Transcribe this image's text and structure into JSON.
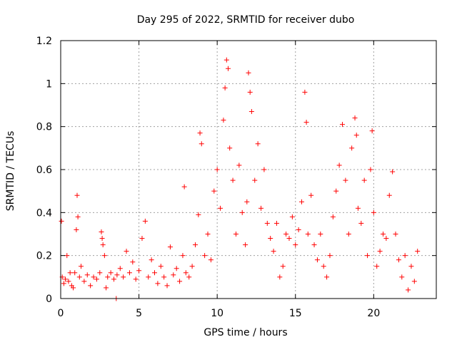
{
  "chart_data": {
    "type": "scatter",
    "title": "Day 295 of 2022, SRMTID for receiver dubo",
    "xlabel": "GPS time / hours",
    "ylabel": "SRMTID / TECUs",
    "xlim": [
      0,
      24
    ],
    "ylim": [
      0,
      1.2
    ],
    "xticks": [
      0,
      5,
      10,
      15,
      20
    ],
    "xtick_labels": [
      "0",
      "5",
      "10",
      "15",
      "20"
    ],
    "yticks": [
      0,
      0.2,
      0.4,
      0.6,
      0.8,
      1,
      1.2
    ],
    "ytick_labels": [
      "0",
      "0.2",
      "0.4",
      "0.6",
      "0.8",
      "1",
      "1.2"
    ],
    "grid": true,
    "marker": "+",
    "color": "#ff0000",
    "x_range_covered": [
      0,
      22.8
    ],
    "series": [
      {
        "name": "SRMTID",
        "x": [
          0.05,
          0.1,
          0.2,
          0.3,
          0.4,
          0.5,
          0.6,
          0.7,
          0.8,
          0.9,
          1.0,
          1.05,
          1.1,
          1.2,
          1.3,
          1.5,
          1.7,
          1.9,
          2.1,
          2.3,
          2.5,
          2.6,
          2.65,
          2.7,
          2.8,
          2.9,
          3.0,
          3.2,
          3.4,
          3.55,
          3.6,
          3.8,
          4.0,
          4.2,
          4.4,
          4.6,
          4.8,
          5.0,
          5.2,
          5.4,
          5.6,
          5.8,
          6.0,
          6.2,
          6.4,
          6.6,
          6.8,
          7.0,
          7.2,
          7.4,
          7.6,
          7.8,
          7.9,
          8.0,
          8.2,
          8.4,
          8.6,
          8.8,
          8.9,
          9.0,
          9.2,
          9.4,
          9.6,
          9.8,
          10.0,
          10.2,
          10.4,
          10.5,
          10.6,
          10.7,
          10.8,
          11.0,
          11.2,
          11.4,
          11.6,
          11.8,
          11.9,
          12.0,
          12.1,
          12.2,
          12.4,
          12.6,
          12.8,
          13.0,
          13.2,
          13.4,
          13.6,
          13.8,
          14.0,
          14.2,
          14.4,
          14.6,
          14.8,
          15.0,
          15.2,
          15.4,
          15.6,
          15.7,
          15.8,
          16.0,
          16.2,
          16.4,
          16.6,
          16.8,
          17.0,
          17.2,
          17.4,
          17.6,
          17.8,
          18.0,
          18.2,
          18.4,
          18.6,
          18.8,
          18.9,
          19.0,
          19.2,
          19.4,
          19.6,
          19.8,
          19.9,
          20.0,
          20.2,
          20.4,
          20.6,
          20.8,
          21.0,
          21.2,
          21.4,
          21.6,
          21.8,
          22.0,
          22.2,
          22.4,
          22.6,
          22.8
        ],
        "y": [
          0.36,
          0.1,
          0.07,
          0.09,
          0.2,
          0.08,
          0.12,
          0.06,
          0.05,
          0.12,
          0.32,
          0.48,
          0.38,
          0.1,
          0.15,
          0.08,
          0.11,
          0.06,
          0.1,
          0.09,
          0.12,
          0.31,
          0.28,
          0.25,
          0.2,
          0.05,
          0.1,
          0.12,
          0.09,
          0.0,
          0.11,
          0.14,
          0.1,
          0.22,
          0.12,
          0.17,
          0.09,
          0.13,
          0.28,
          0.36,
          0.1,
          0.18,
          0.12,
          0.07,
          0.15,
          0.1,
          0.06,
          0.24,
          0.11,
          0.14,
          0.08,
          0.2,
          0.52,
          0.12,
          0.1,
          0.15,
          0.25,
          0.39,
          0.77,
          0.72,
          0.2,
          0.3,
          0.18,
          0.5,
          0.6,
          0.42,
          0.83,
          0.98,
          1.11,
          1.07,
          0.7,
          0.55,
          0.3,
          0.62,
          0.4,
          0.25,
          0.45,
          1.05,
          0.96,
          0.87,
          0.55,
          0.72,
          0.42,
          0.6,
          0.35,
          0.28,
          0.22,
          0.35,
          0.1,
          0.15,
          0.3,
          0.28,
          0.38,
          0.25,
          0.32,
          0.45,
          0.96,
          0.82,
          0.3,
          0.48,
          0.25,
          0.18,
          0.3,
          0.15,
          0.1,
          0.2,
          0.38,
          0.5,
          0.62,
          0.81,
          0.55,
          0.3,
          0.7,
          0.84,
          0.76,
          0.42,
          0.35,
          0.55,
          0.2,
          0.6,
          0.78,
          0.4,
          0.15,
          0.22,
          0.3,
          0.28,
          0.48,
          0.59,
          0.3,
          0.18,
          0.1,
          0.2,
          0.04,
          0.15,
          0.08,
          0.22
        ]
      }
    ]
  }
}
